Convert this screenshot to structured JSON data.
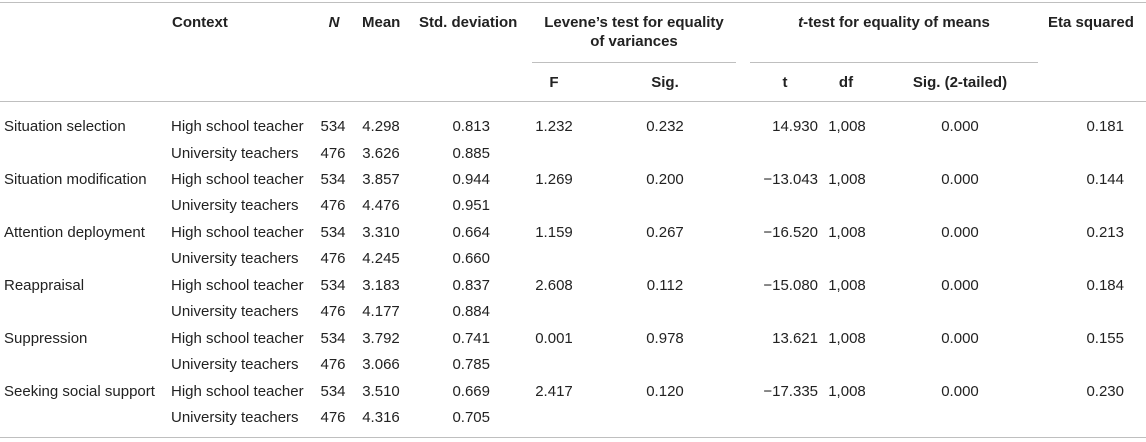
{
  "headers": {
    "context": "Context",
    "n": "N",
    "mean": "Mean",
    "std": "Std. deviation",
    "levene_line1": "Levene’s test for equality",
    "levene_line2": "of variances",
    "ttest_t": "t",
    "ttest_rest": "-test for equality of means",
    "eta": "Eta squared",
    "f": "F",
    "sig": "Sig.",
    "t": "t",
    "df": "df",
    "sig2": "Sig. (2-tailed)"
  },
  "rows": [
    {
      "label": "Situation selection",
      "hs": {
        "context": "High school teacher",
        "n": "534",
        "mean": "4.298",
        "sd": "0.813"
      },
      "uni": {
        "context": "University teachers",
        "n": "476",
        "mean": "3.626",
        "sd": "0.885"
      },
      "f": "1.232",
      "sig": "0.232",
      "t": "14.930",
      "df": "1,008",
      "sig2": "0.000",
      "eta": "0.181"
    },
    {
      "label": "Situation modification",
      "hs": {
        "context": "High school teacher",
        "n": "534",
        "mean": "3.857",
        "sd": "0.944"
      },
      "uni": {
        "context": "University teachers",
        "n": "476",
        "mean": "4.476",
        "sd": "0.951"
      },
      "f": "1.269",
      "sig": "0.200",
      "t": "−13.043",
      "df": "1,008",
      "sig2": "0.000",
      "eta": "0.144"
    },
    {
      "label": "Attention deployment",
      "hs": {
        "context": "High school teacher",
        "n": "534",
        "mean": "3.310",
        "sd": "0.664"
      },
      "uni": {
        "context": "University teachers",
        "n": "476",
        "mean": "4.245",
        "sd": "0.660"
      },
      "f": "1.159",
      "sig": "0.267",
      "t": "−16.520",
      "df": "1,008",
      "sig2": "0.000",
      "eta": "0.213"
    },
    {
      "label": "Reappraisal",
      "hs": {
        "context": "High school teacher",
        "n": "534",
        "mean": "3.183",
        "sd": "0.837"
      },
      "uni": {
        "context": "University teachers",
        "n": "476",
        "mean": "4.177",
        "sd": "0.884"
      },
      "f": "2.608",
      "sig": "0.112",
      "t": "−15.080",
      "df": "1,008",
      "sig2": "0.000",
      "eta": "0.184"
    },
    {
      "label": "Suppression",
      "hs": {
        "context": "High school teacher",
        "n": "534",
        "mean": "3.792",
        "sd": "0.741"
      },
      "uni": {
        "context": "University teachers",
        "n": "476",
        "mean": "3.066",
        "sd": "0.785"
      },
      "f": "0.001",
      "sig": "0.978",
      "t": "13.621",
      "df": "1,008",
      "sig2": "0.000",
      "eta": "0.155"
    },
    {
      "label": "Seeking social support",
      "hs": {
        "context": "High school teacher",
        "n": "534",
        "mean": "3.510",
        "sd": "0.669"
      },
      "uni": {
        "context": "University teachers",
        "n": "476",
        "mean": "4.316",
        "sd": "0.705"
      },
      "f": "2.417",
      "sig": "0.120",
      "t": "−17.335",
      "df": "1,008",
      "sig2": "0.000",
      "eta": "0.230"
    }
  ]
}
